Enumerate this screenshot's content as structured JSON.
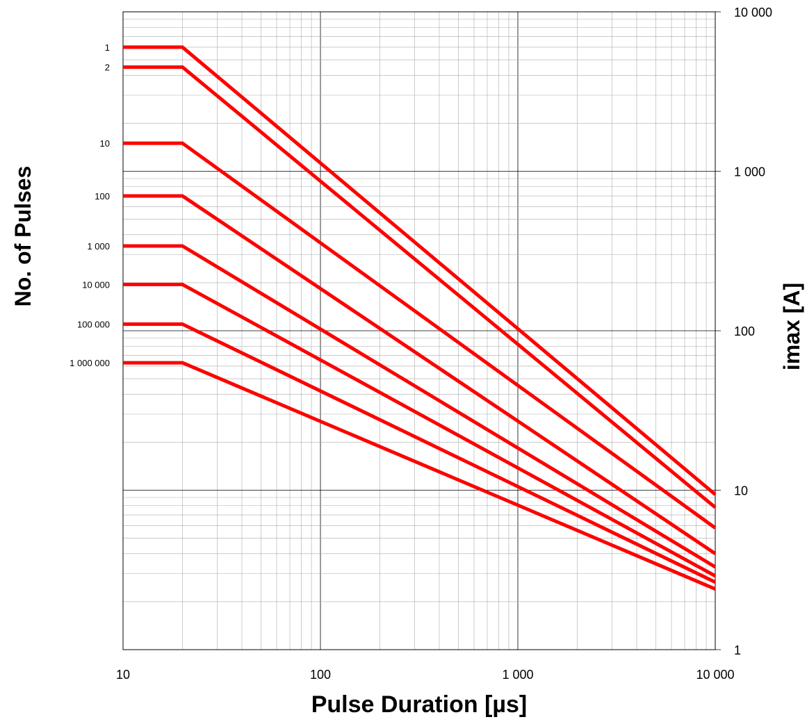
{
  "chart_data": {
    "type": "line",
    "x_scale": "log",
    "y_scale": "log",
    "xlim": [
      10,
      10000
    ],
    "ylim": [
      1,
      10000
    ],
    "grid": true,
    "xlabel": "Pulse Duration [µs]",
    "ylabel": "imax [A]",
    "left_label": "No. of Pulses",
    "x_ticks": [
      "10",
      "100",
      "1 000",
      "10 000"
    ],
    "y_ticks": [
      "1",
      "10",
      "100",
      "1 000",
      "10 000"
    ],
    "line_color": "#ff0000",
    "series": [
      {
        "name": "1",
        "x": [
          10,
          20,
          10000
        ],
        "y": [
          6000,
          6000,
          9.4
        ]
      },
      {
        "name": "2",
        "x": [
          10,
          20,
          10000
        ],
        "y": [
          4500,
          4500,
          7.8
        ]
      },
      {
        "name": "10",
        "x": [
          10,
          20,
          10000
        ],
        "y": [
          1500,
          1500,
          5.8
        ]
      },
      {
        "name": "100",
        "x": [
          10,
          20,
          10000
        ],
        "y": [
          700,
          700,
          4.0
        ]
      },
      {
        "name": "1 000",
        "x": [
          10,
          20,
          10000
        ],
        "y": [
          340,
          340,
          3.3
        ]
      },
      {
        "name": "10 000",
        "x": [
          10,
          20,
          10000
        ],
        "y": [
          195,
          195,
          2.9
        ]
      },
      {
        "name": "100 000",
        "x": [
          10,
          20,
          10000
        ],
        "y": [
          110,
          110,
          2.65
        ]
      },
      {
        "name": "1 000 000",
        "x": [
          10,
          20,
          10000
        ],
        "y": [
          63,
          63,
          2.4
        ]
      }
    ]
  }
}
